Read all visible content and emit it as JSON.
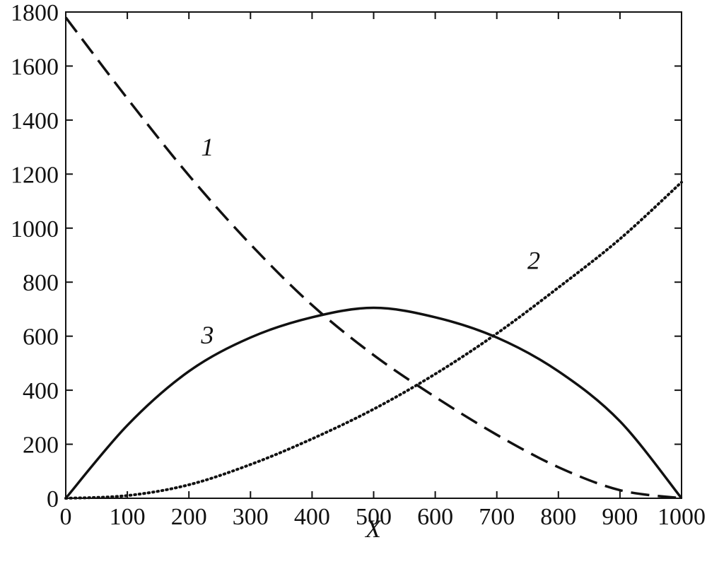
{
  "chart_data": {
    "type": "line",
    "title": "",
    "xlabel": "X",
    "ylabel": "",
    "xlim": [
      0,
      1000
    ],
    "ylim": [
      0,
      1800
    ],
    "x_ticks": [
      0,
      100,
      200,
      300,
      400,
      500,
      600,
      700,
      800,
      900,
      1000
    ],
    "y_ticks": [
      0,
      200,
      400,
      600,
      800,
      1000,
      1200,
      1400,
      1600,
      1800
    ],
    "grid": false,
    "legend": "none",
    "series": [
      {
        "name": "1",
        "style": "dashed",
        "x": [
          0,
          100,
          200,
          300,
          400,
          500,
          600,
          700,
          800,
          900,
          1000
        ],
        "y": [
          1780,
          1480,
          1195,
          940,
          715,
          530,
          375,
          235,
          115,
          30,
          0
        ]
      },
      {
        "name": "2",
        "style": "dotted",
        "x": [
          0,
          100,
          200,
          300,
          400,
          500,
          600,
          700,
          800,
          900,
          1000
        ],
        "y": [
          0,
          10,
          50,
          125,
          220,
          330,
          460,
          610,
          780,
          960,
          1170
        ]
      },
      {
        "name": "3",
        "style": "solid",
        "x": [
          0,
          100,
          200,
          300,
          400,
          500,
          600,
          700,
          800,
          900,
          1000
        ],
        "y": [
          0,
          270,
          470,
          595,
          670,
          705,
          670,
          595,
          470,
          285,
          0
        ]
      }
    ],
    "annotations": [
      {
        "text": "1",
        "series": "1",
        "x": 230,
        "y": 1300
      },
      {
        "text": "2",
        "series": "2",
        "x": 760,
        "y": 880
      },
      {
        "text": "3",
        "series": "3",
        "x": 230,
        "y": 605
      }
    ]
  }
}
